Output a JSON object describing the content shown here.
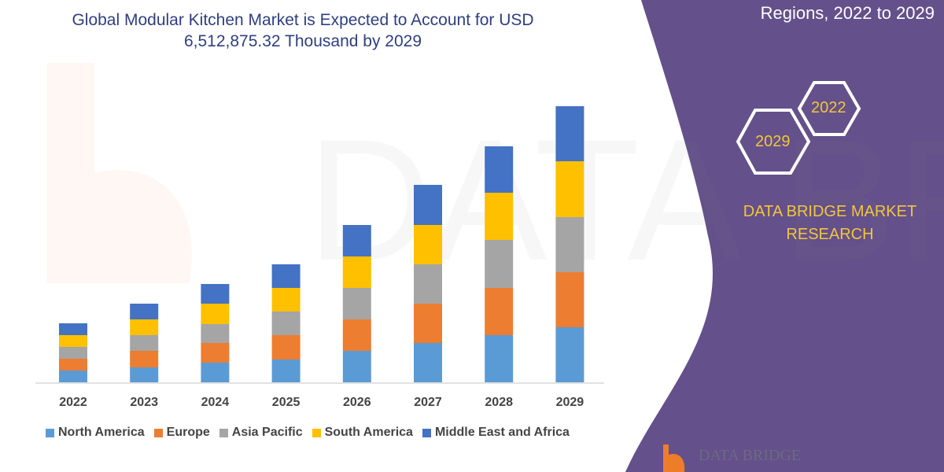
{
  "title": "Global Modular Kitchen Market is Expected to Account for USD 6,512,875.32 Thousand by 2029",
  "side_panel": {
    "subtitle": "Regions, 2022 to 2029",
    "hex_years": [
      "2022",
      "2029"
    ],
    "brand": "DATA BRIDGE MARKET RESEARCH",
    "logo_text": "DATA BRIDGE",
    "panel_color": "#64508a"
  },
  "chart_data": {
    "type": "bar",
    "stacked": true,
    "categories": [
      "2022",
      "2023",
      "2024",
      "2025",
      "2026",
      "2027",
      "2028",
      "2029"
    ],
    "series": [
      {
        "name": "North America",
        "color": "#5b9bd5",
        "values": [
          15,
          19,
          25,
          29,
          40,
          50,
          60,
          70
        ]
      },
      {
        "name": "Europe",
        "color": "#ed7d31",
        "values": [
          15,
          21,
          25,
          31,
          40,
          50,
          60,
          70
        ]
      },
      {
        "name": "Asia Pacific",
        "color": "#a5a5a5",
        "values": [
          15,
          20,
          24,
          30,
          40,
          50,
          61,
          70
        ]
      },
      {
        "name": "South America",
        "color": "#ffc000",
        "values": [
          15,
          20,
          26,
          30,
          40,
          50,
          60,
          71
        ]
      },
      {
        "name": "Middle East and Africa",
        "color": "#4472c4",
        "values": [
          15,
          20,
          25,
          30,
          40,
          51,
          59,
          70
        ]
      }
    ],
    "legend": "bottom",
    "grid": false,
    "y_axis_shown": false
  }
}
